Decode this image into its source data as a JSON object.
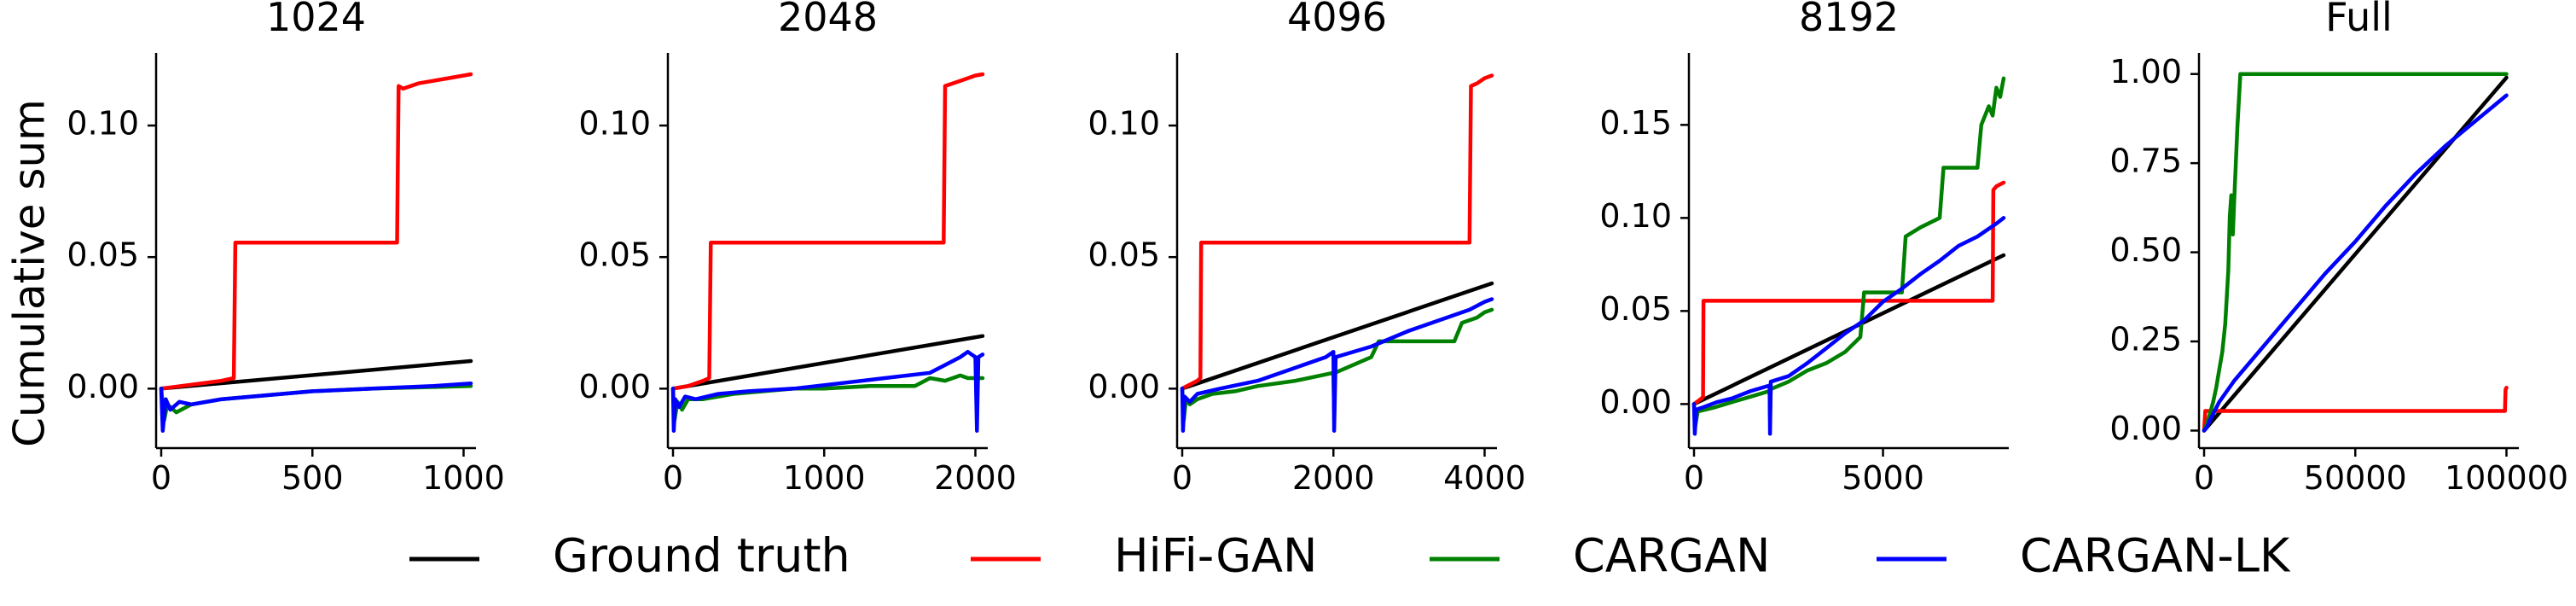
{
  "figure": {
    "ylabel": "Cumulative sum"
  },
  "legend": [
    {
      "name": "Ground truth",
      "color": "#000000"
    },
    {
      "name": "HiFi-GAN",
      "color": "#ff0000"
    },
    {
      "name": "CARGAN",
      "color": "#008000"
    },
    {
      "name": "CARGAN-LK",
      "color": "#0000ff"
    }
  ],
  "chart_data": [
    {
      "type": "line",
      "title": "1024",
      "xlim": [
        0,
        1024
      ],
      "ylim": [
        -0.02,
        0.125
      ],
      "xticks": [
        0,
        500,
        1000
      ],
      "xtick_labels": [
        "0",
        "500",
        "1000"
      ],
      "yticks": [
        0.0,
        0.05,
        0.1
      ],
      "ytick_labels": [
        "0.00",
        "0.05",
        "0.10"
      ],
      "series": [
        {
          "name": "Ground truth",
          "color": "#000000",
          "x": [
            0,
            1024
          ],
          "y": [
            0,
            0.0105
          ]
        },
        {
          "name": "HiFi-GAN",
          "color": "#ff0000",
          "x": [
            0,
            100,
            200,
            240,
            245,
            780,
            785,
            800,
            850,
            900,
            950,
            1000,
            1024
          ],
          "y": [
            0,
            0.0015,
            0.003,
            0.004,
            0.0555,
            0.0555,
            0.115,
            0.114,
            0.116,
            0.117,
            0.118,
            0.119,
            0.1195
          ]
        },
        {
          "name": "CARGAN",
          "color": "#008000",
          "x": [
            0,
            10,
            20,
            50,
            100,
            200,
            300,
            400,
            500,
            700,
            1024
          ],
          "y": [
            0,
            -0.012,
            -0.006,
            -0.009,
            -0.006,
            -0.004,
            -0.003,
            -0.002,
            -0.001,
            0.0,
            0.001
          ]
        },
        {
          "name": "CARGAN-LK",
          "color": "#0000ff",
          "x": [
            0,
            5,
            15,
            30,
            60,
            100,
            200,
            300,
            400,
            500,
            700,
            900,
            1024
          ],
          "y": [
            0,
            -0.016,
            -0.004,
            -0.008,
            -0.005,
            -0.006,
            -0.004,
            -0.003,
            -0.002,
            -0.001,
            0.0,
            0.001,
            0.002
          ]
        }
      ]
    },
    {
      "type": "line",
      "title": "2048",
      "xlim": [
        0,
        2048
      ],
      "ylim": [
        -0.02,
        0.125
      ],
      "xticks": [
        0,
        1000,
        2000
      ],
      "xtick_labels": [
        "0",
        "1000",
        "2000"
      ],
      "yticks": [
        0.0,
        0.05,
        0.1
      ],
      "ytick_labels": [
        "0.00",
        "0.05",
        "0.10"
      ],
      "series": [
        {
          "name": "Ground truth",
          "color": "#000000",
          "x": [
            0,
            2048
          ],
          "y": [
            0,
            0.02
          ]
        },
        {
          "name": "HiFi-GAN",
          "color": "#ff0000",
          "x": [
            0,
            100,
            200,
            240,
            250,
            1790,
            1800,
            1850,
            1900,
            2000,
            2048
          ],
          "y": [
            0,
            0.001,
            0.003,
            0.004,
            0.0555,
            0.0555,
            0.115,
            0.116,
            0.117,
            0.119,
            0.1195
          ]
        },
        {
          "name": "CARGAN",
          "color": "#008000",
          "x": [
            0,
            10,
            30,
            60,
            100,
            200,
            400,
            600,
            800,
            1000,
            1300,
            1600,
            1700,
            1800,
            1900,
            1950,
            2000,
            2048
          ],
          "y": [
            0,
            -0.012,
            -0.005,
            -0.008,
            -0.004,
            -0.004,
            -0.002,
            -0.001,
            0.0,
            0.0,
            0.001,
            0.001,
            0.004,
            0.003,
            0.005,
            0.004,
            0.004,
            0.004
          ]
        },
        {
          "name": "CARGAN-LK",
          "color": "#0000ff",
          "x": [
            0,
            5,
            15,
            40,
            80,
            150,
            300,
            500,
            800,
            1100,
            1400,
            1700,
            1800,
            1900,
            1950,
            2000,
            2010,
            2020,
            2048
          ],
          "y": [
            0,
            -0.016,
            -0.004,
            -0.007,
            -0.003,
            -0.004,
            -0.002,
            -0.001,
            0.0,
            0.002,
            0.004,
            0.006,
            0.009,
            0.012,
            0.014,
            0.012,
            -0.016,
            0.012,
            0.013
          ]
        }
      ]
    },
    {
      "type": "line",
      "title": "4096",
      "xlim": [
        0,
        4096
      ],
      "ylim": [
        -0.02,
        0.125
      ],
      "xticks": [
        0,
        2000,
        4000
      ],
      "xtick_labels": [
        "0",
        "2000",
        "4000"
      ],
      "yticks": [
        0.0,
        0.05,
        0.1
      ],
      "ytick_labels": [
        "0.00",
        "0.05",
        "0.10"
      ],
      "series": [
        {
          "name": "Ground truth",
          "color": "#000000",
          "x": [
            0,
            4096
          ],
          "y": [
            0,
            0.04
          ]
        },
        {
          "name": "HiFi-GAN",
          "color": "#ff0000",
          "x": [
            0,
            200,
            240,
            250,
            3800,
            3820,
            3900,
            4000,
            4096
          ],
          "y": [
            0,
            0.003,
            0.004,
            0.0555,
            0.0555,
            0.115,
            0.116,
            0.118,
            0.119
          ]
        },
        {
          "name": "CARGAN",
          "color": "#008000",
          "x": [
            0,
            20,
            50,
            100,
            200,
            400,
            700,
            1000,
            1500,
            2000,
            2010,
            2020,
            2500,
            2600,
            3000,
            3100,
            3600,
            3700,
            3900,
            4000,
            4096
          ],
          "y": [
            0,
            -0.012,
            -0.004,
            -0.006,
            -0.004,
            -0.002,
            -0.001,
            0.001,
            0.003,
            0.006,
            -0.008,
            0.006,
            0.012,
            0.018,
            0.018,
            0.018,
            0.018,
            0.025,
            0.027,
            0.029,
            0.03
          ]
        },
        {
          "name": "CARGAN-LK",
          "color": "#0000ff",
          "x": [
            0,
            10,
            30,
            100,
            200,
            500,
            1000,
            1500,
            1900,
            2000,
            2010,
            2030,
            2500,
            3000,
            3500,
            3800,
            4000,
            4096
          ],
          "y": [
            0,
            -0.016,
            -0.003,
            -0.005,
            -0.002,
            0.0,
            0.003,
            0.008,
            0.012,
            0.014,
            -0.016,
            0.012,
            0.016,
            0.022,
            0.027,
            0.03,
            0.033,
            0.034
          ]
        }
      ]
    },
    {
      "type": "line",
      "title": "8192",
      "xlim": [
        0,
        8192
      ],
      "ylim": [
        -0.02,
        0.185
      ],
      "xticks": [
        0,
        5000
      ],
      "xtick_labels": [
        "0",
        "5000"
      ],
      "yticks": [
        0.0,
        0.05,
        0.1,
        0.15
      ],
      "ytick_labels": [
        "0.00",
        "0.05",
        "0.10",
        "0.15"
      ],
      "series": [
        {
          "name": "Ground truth",
          "color": "#000000",
          "x": [
            0,
            8192
          ],
          "y": [
            0,
            0.08
          ]
        },
        {
          "name": "HiFi-GAN",
          "color": "#ff0000",
          "x": [
            0,
            200,
            240,
            250,
            7900,
            7920,
            8000,
            8192
          ],
          "y": [
            0,
            0.003,
            0.004,
            0.0555,
            0.0555,
            0.115,
            0.117,
            0.119
          ]
        },
        {
          "name": "CARGAN",
          "color": "#008000",
          "x": [
            0,
            30,
            100,
            500,
            1000,
            1500,
            2000,
            2010,
            2030,
            2500,
            3000,
            3500,
            4000,
            4400,
            4500,
            5000,
            5500,
            5600,
            6000,
            6500,
            6600,
            7500,
            7600,
            7800,
            7900,
            8000,
            8100,
            8192
          ],
          "y": [
            0,
            -0.012,
            -0.004,
            -0.002,
            0.001,
            0.004,
            0.007,
            -0.008,
            0.008,
            0.012,
            0.018,
            0.022,
            0.028,
            0.036,
            0.06,
            0.06,
            0.06,
            0.09,
            0.095,
            0.1,
            0.127,
            0.127,
            0.15,
            0.16,
            0.155,
            0.17,
            0.165,
            0.175
          ]
        },
        {
          "name": "CARGAN-LK",
          "color": "#0000ff",
          "x": [
            0,
            20,
            60,
            200,
            600,
            1000,
            1500,
            2000,
            2010,
            2030,
            2500,
            3000,
            3500,
            4000,
            4500,
            5000,
            5500,
            6000,
            6500,
            7000,
            7500,
            8000,
            8192
          ],
          "y": [
            0,
            -0.016,
            -0.003,
            -0.002,
            0.001,
            0.003,
            0.007,
            0.01,
            -0.016,
            0.012,
            0.015,
            0.022,
            0.03,
            0.038,
            0.045,
            0.055,
            0.062,
            0.07,
            0.077,
            0.085,
            0.09,
            0.097,
            0.1
          ]
        }
      ]
    },
    {
      "type": "line",
      "title": "Full",
      "xlim": [
        0,
        102400
      ],
      "ylim": [
        -0.03,
        1.04
      ],
      "xticks": [
        0,
        50000,
        100000
      ],
      "xtick_labels": [
        "0",
        "50000",
        "100000"
      ],
      "yticks": [
        0.0,
        0.25,
        0.5,
        0.75,
        1.0
      ],
      "ytick_labels": [
        "0.00",
        "0.25",
        "0.50",
        "0.75",
        "1.00"
      ],
      "series": [
        {
          "name": "Ground truth",
          "color": "#000000",
          "x": [
            0,
            100000
          ],
          "y": [
            0,
            0.99
          ]
        },
        {
          "name": "HiFi-GAN",
          "color": "#ff0000",
          "x": [
            0,
            400,
            99500,
            99700,
            100000
          ],
          "y": [
            0,
            0.055,
            0.055,
            0.115,
            0.12
          ]
        },
        {
          "name": "CARGAN",
          "color": "#008000",
          "x": [
            0,
            1000,
            2000,
            3000,
            4000,
            5000,
            6000,
            7000,
            8000,
            8500,
            9000,
            9500,
            10000,
            11000,
            12000,
            100000
          ],
          "y": [
            0,
            0.02,
            0.05,
            0.08,
            0.12,
            0.17,
            0.22,
            0.3,
            0.45,
            0.6,
            0.66,
            0.55,
            0.65,
            0.85,
            1.0,
            1.0
          ]
        },
        {
          "name": "CARGAN-LK",
          "color": "#0000ff",
          "x": [
            0,
            1000,
            2000,
            5000,
            10000,
            20000,
            30000,
            40000,
            50000,
            60000,
            70000,
            80000,
            90000,
            100000
          ],
          "y": [
            0,
            0.01,
            0.03,
            0.08,
            0.14,
            0.24,
            0.34,
            0.44,
            0.53,
            0.63,
            0.72,
            0.8,
            0.87,
            0.94
          ]
        }
      ]
    }
  ]
}
